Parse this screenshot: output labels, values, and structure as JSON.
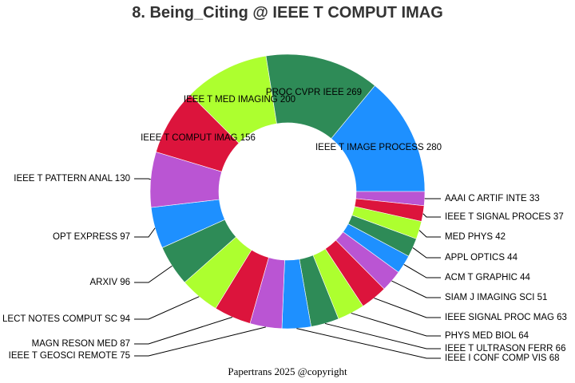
{
  "chart_data": {
    "type": "pie",
    "title": "8. Being_Citing @ IEEE T COMPUT IMAG",
    "donut": true,
    "slices": [
      {
        "label": "IEEE T IMAGE PROCESS",
        "value": 280,
        "color": "#1e90ff"
      },
      {
        "label": "AAAI C ARTIF INTE",
        "value": 33,
        "color": "#ba55d3"
      },
      {
        "label": "IEEE T SIGNAL PROCES",
        "value": 37,
        "color": "#dc143c"
      },
      {
        "label": "MED PHYS",
        "value": 42,
        "color": "#adff2f"
      },
      {
        "label": "APPL OPTICS",
        "value": 44,
        "color": "#2e8b57"
      },
      {
        "label": "ACM T GRAPHIC",
        "value": 44,
        "color": "#1e90ff"
      },
      {
        "label": "SIAM J IMAGING SCI",
        "value": 51,
        "color": "#ba55d3"
      },
      {
        "label": "IEEE SIGNAL PROC MAG",
        "value": 63,
        "color": "#dc143c"
      },
      {
        "label": "PHYS MED BIOL",
        "value": 64,
        "color": "#adff2f"
      },
      {
        "label": "IEEE T ULTRASON FERR",
        "value": 66,
        "color": "#2e8b57"
      },
      {
        "label": "IEEE I CONF COMP VIS",
        "value": 68,
        "color": "#1e90ff"
      },
      {
        "label": "IEEE T GEOSCI REMOTE",
        "value": 75,
        "color": "#ba55d3"
      },
      {
        "label": "MAGN RESON MED",
        "value": 87,
        "color": "#dc143c"
      },
      {
        "label": "LECT NOTES COMPUT SC",
        "value": 94,
        "color": "#adff2f"
      },
      {
        "label": "ARXIV",
        "value": 96,
        "color": "#2e8b57"
      },
      {
        "label": "OPT EXPRESS",
        "value": 97,
        "color": "#1e90ff"
      },
      {
        "label": "IEEE T PATTERN ANAL",
        "value": 130,
        "color": "#ba55d3"
      },
      {
        "label": "IEEE T COMPUT IMAG",
        "value": 156,
        "color": "#dc143c"
      },
      {
        "label": "IEEE T MED IMAGING",
        "value": 200,
        "color": "#adff2f"
      },
      {
        "label": "PROC CVPR IEEE",
        "value": 269,
        "color": "#2e8b57"
      }
    ],
    "slice_labels": [
      "IEEE T IMAGE PROCESS 280",
      "AAAI C ARTIF INTE 33",
      "IEEE T SIGNAL PROCES 37",
      "MED PHYS 42",
      "APPL OPTICS 44",
      "ACM T GRAPHIC 44",
      "SIAM J IMAGING SCI 51",
      "IEEE SIGNAL PROC MAG 63",
      "PHYS MED BIOL 64",
      "IEEE T ULTRASON FERR 66",
      "IEEE I CONF COMP VIS 68",
      "IEEE T GEOSCI REMOTE 75",
      "MAGN RESON MED 87",
      "LECT NOTES COMPUT SC 94",
      "ARXIV 96",
      "OPT EXPRESS 97",
      "IEEE T PATTERN ANAL 130",
      "IEEE T COMPUT IMAG 156",
      "IEEE T MED IMAGING 200",
      "PROC CVPR IEEE 269"
    ]
  },
  "footer": "Papertrans 2025 @copyright"
}
